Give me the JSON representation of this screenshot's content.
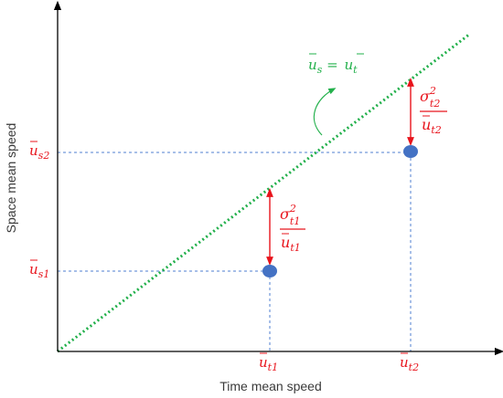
{
  "axes": {
    "x_label": "Time mean speed",
    "y_label": "Space mean speed"
  },
  "line_label": {
    "lhs_base": "u",
    "lhs_sub": "s",
    "eq": " = ",
    "rhs_base": "u",
    "rhs_sub": "t"
  },
  "x_ticks": [
    {
      "base": "u",
      "sub": "t1"
    },
    {
      "base": "u",
      "sub": "t2"
    }
  ],
  "y_ticks": [
    {
      "base": "u",
      "sub": "s1"
    },
    {
      "base": "u",
      "sub": "s2"
    }
  ],
  "gap_labels": [
    {
      "num_base": "σ",
      "num_sub": "t1",
      "num_sup": "2",
      "den_base": "u",
      "den_sub": "t1"
    },
    {
      "num_base": "σ",
      "num_sub": "t2",
      "num_sup": "2",
      "den_base": "u",
      "den_sub": "t2"
    }
  ],
  "colors": {
    "axis": "#000000",
    "identity_line": "#22b04b",
    "guide": "#4f7fd1",
    "point": "#4472c4",
    "arrow": "#e8141c"
  }
}
